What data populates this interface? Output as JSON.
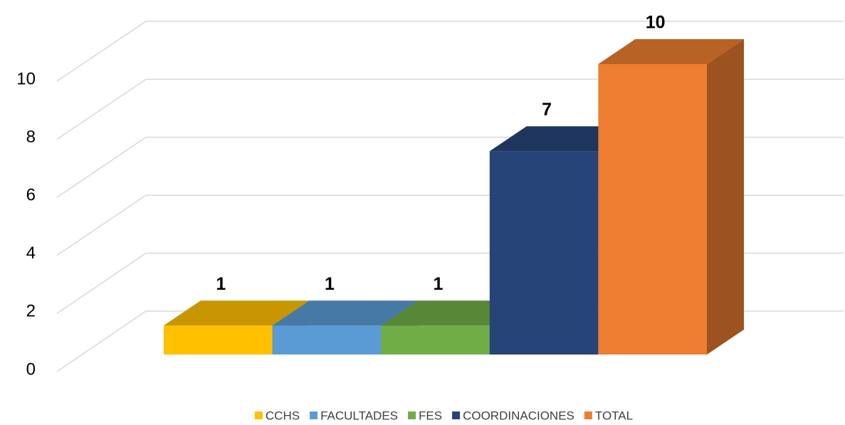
{
  "chart_data": {
    "type": "bar3d",
    "series": [
      {
        "name": "CCHS",
        "color": "#ffc000",
        "values": [
          1
        ]
      },
      {
        "name": "FACULTADES",
        "color": "#5b9bd5",
        "values": [
          1
        ]
      },
      {
        "name": "FES",
        "color": "#70ad47",
        "values": [
          1
        ]
      },
      {
        "name": "COORDINACIONES",
        "color": "#264478",
        "values": [
          7
        ]
      },
      {
        "name": "TOTAL",
        "color": "#ed7d31",
        "values": [
          10
        ]
      }
    ],
    "ylim": [
      0,
      10
    ],
    "yticks": [
      0,
      2,
      4,
      6,
      8,
      10
    ],
    "grid": true,
    "legend": "bottom"
  }
}
